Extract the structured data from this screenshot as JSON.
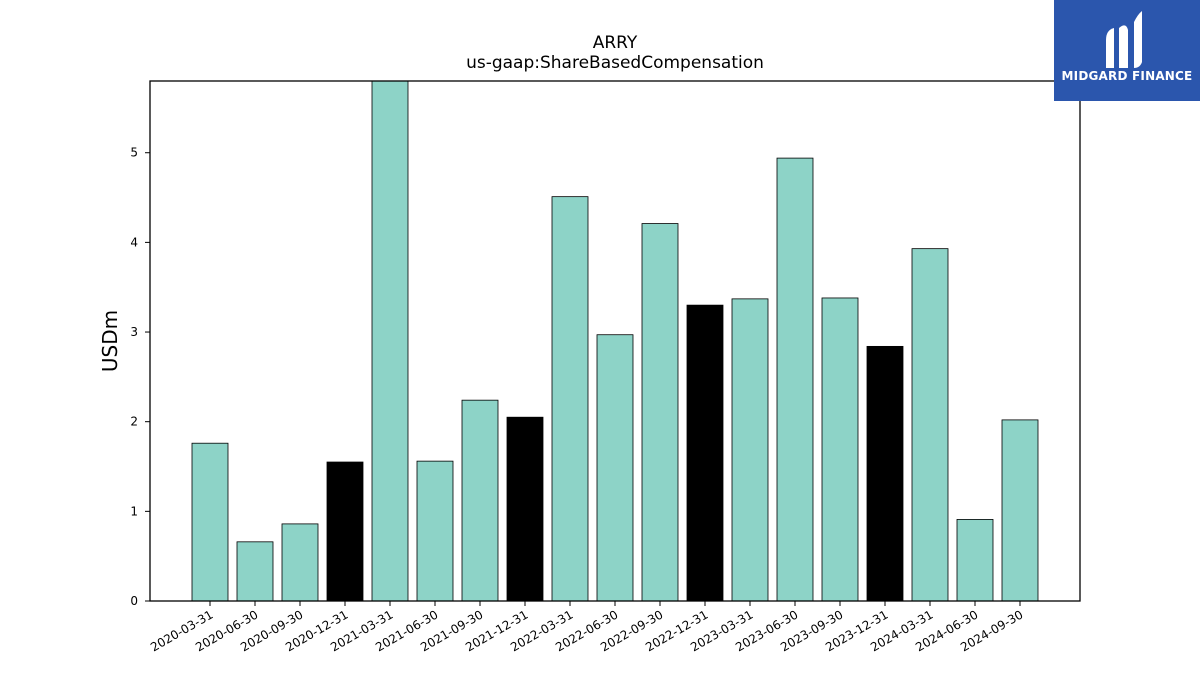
{
  "chart_data": {
    "type": "bar",
    "title": "ARRY",
    "subtitle": "us-gaap:ShareBasedCompensation",
    "ylabel": "USDm",
    "xlabel": "",
    "ylim": [
      0,
      5.8
    ],
    "yticks": [
      0,
      1,
      2,
      3,
      4,
      5
    ],
    "grid": false,
    "categories": [
      "2020-03-31",
      "2020-06-30",
      "2020-09-30",
      "2020-12-31",
      "2021-03-31",
      "2021-06-30",
      "2021-09-30",
      "2021-12-31",
      "2022-03-31",
      "2022-06-30",
      "2022-09-30",
      "2022-12-31",
      "2023-03-31",
      "2023-06-30",
      "2023-09-30",
      "2023-12-31",
      "2024-03-31",
      "2024-06-30",
      "2024-09-30"
    ],
    "values": [
      1.76,
      0.66,
      0.86,
      1.55,
      5.82,
      1.56,
      2.24,
      2.05,
      4.51,
      2.97,
      4.21,
      3.3,
      3.37,
      4.94,
      3.38,
      2.84,
      3.93,
      0.91,
      2.02
    ],
    "highlight": [
      false,
      false,
      false,
      true,
      false,
      false,
      false,
      true,
      false,
      false,
      false,
      true,
      false,
      false,
      false,
      true,
      false,
      false,
      false
    ],
    "colors": {
      "bar": "#8dd3c7",
      "highlight": "#000000",
      "edge": "#000000"
    }
  },
  "logo": {
    "text": "MIDGARD FINANCE",
    "background": "#2b56ad"
  }
}
